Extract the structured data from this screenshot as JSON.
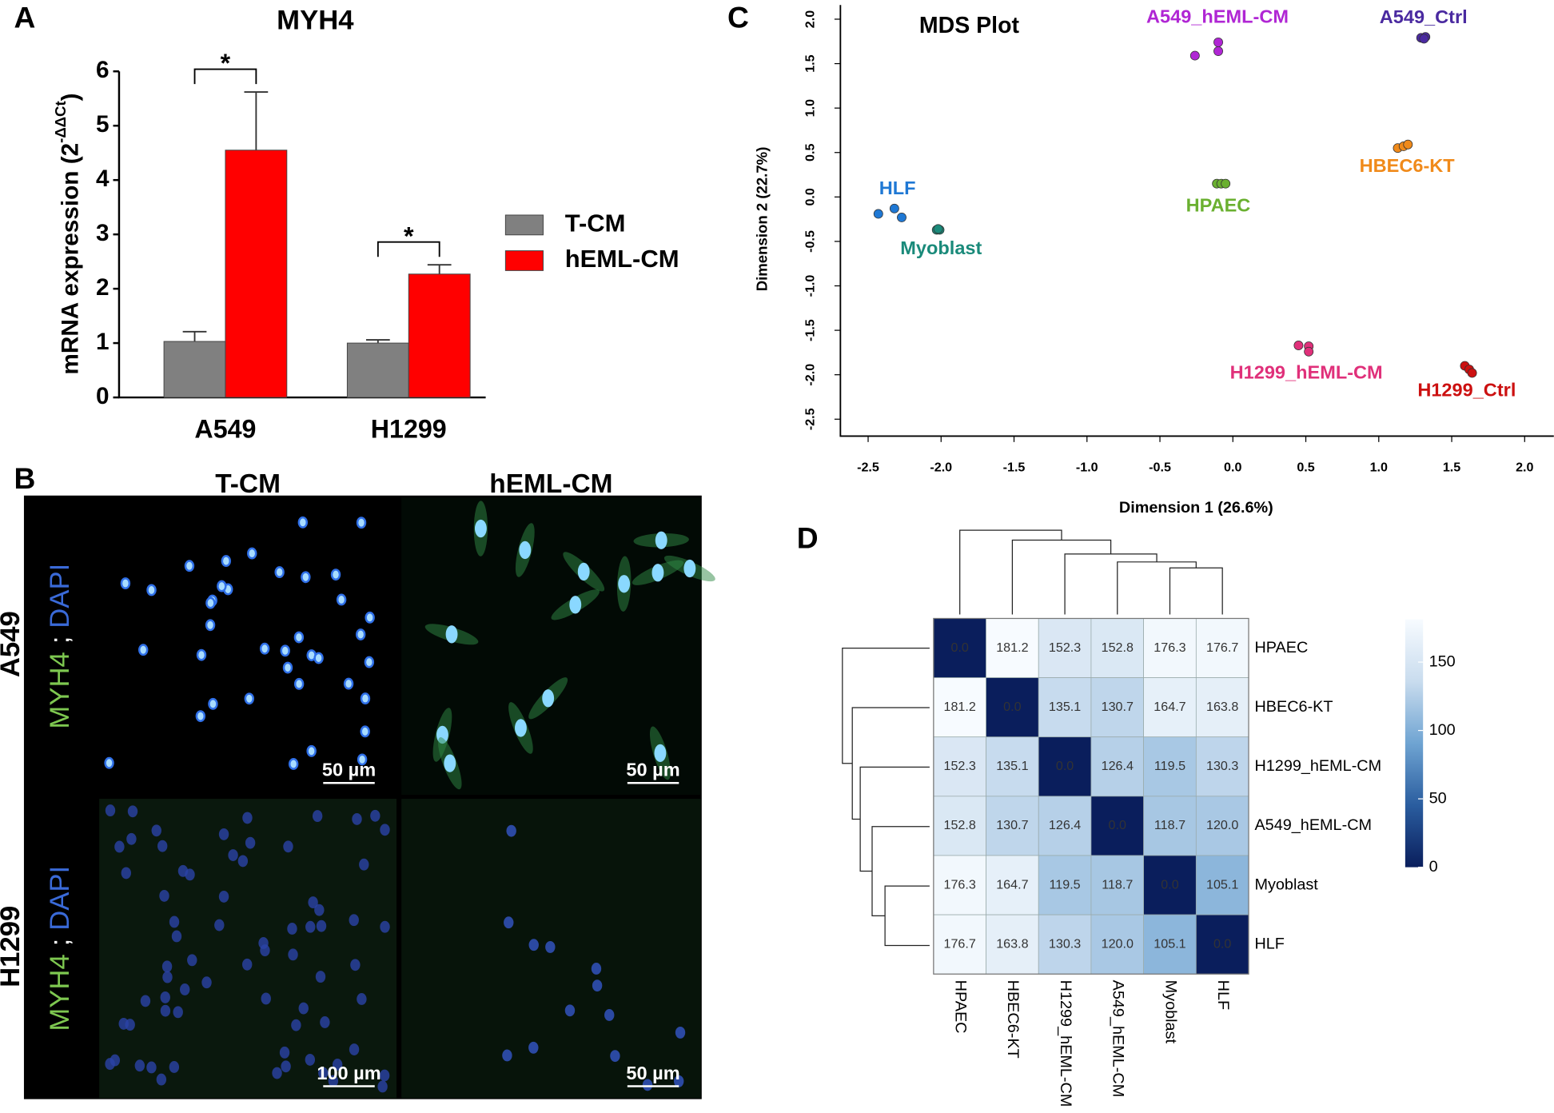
{
  "panel_labels": [
    "A",
    "B",
    "C",
    "D"
  ],
  "micrographs": {
    "columns": [
      "T-CM",
      "hEML-CM"
    ],
    "rows": [
      "A549",
      "H1299"
    ],
    "stain": [
      "MYH4",
      ";",
      "DAPI"
    ],
    "scale_bars": [
      [
        "50 µm",
        "50 µm"
      ],
      [
        "100 µm",
        "50 µm"
      ]
    ]
  },
  "chart_data": [
    {
      "type": "bar",
      "title": "MYH4",
      "ylabel": [
        "mRNA expression (2",
        "-ΔΔCt",
        ")"
      ],
      "categories": [
        "A549",
        "H1299"
      ],
      "series": [
        {
          "name": "T-CM",
          "color": "#808080",
          "values": [
            1.03,
            1.0
          ],
          "errors": [
            0.18,
            0.06
          ]
        },
        {
          "name": "hEML-CM",
          "color": "#ff0000",
          "values": [
            4.55,
            2.27
          ],
          "errors": [
            1.07,
            0.17
          ]
        }
      ],
      "significance": [
        "*",
        "*"
      ],
      "ylim": [
        0,
        6
      ],
      "yticks": [
        0,
        1,
        2,
        3,
        4,
        5,
        6
      ]
    },
    {
      "type": "scatter",
      "title": "MDS Plot",
      "xlabel": "Dimension 1 (26.6%)",
      "ylabel": "Dimension 2 (22.7%)",
      "xlim": [
        -2.69,
        2.2
      ],
      "ylim": [
        -2.69,
        2.16
      ],
      "xticks": [
        -2.5,
        {
          "value": -2,
          "label": "-2.0"
        },
        -1.5,
        {
          "value": -1,
          "label": "-1.0"
        },
        -0.5,
        {
          "value": 0,
          "label": "0.0"
        },
        0.5,
        {
          "value": 1,
          "label": "1.0"
        },
        1.5,
        {
          "value": 2,
          "label": "2.0"
        }
      ],
      "yticks": [
        -2.5,
        {
          "value": -2,
          "label": "-2.0"
        },
        -1.5,
        {
          "value": -1,
          "label": "-1.0"
        },
        -0.5,
        {
          "value": 0,
          "label": "0.0"
        },
        0.5,
        {
          "value": 1,
          "label": "1.0"
        },
        1.5,
        {
          "value": 2,
          "label": "2.0"
        }
      ],
      "series": [
        {
          "name": "HLF",
          "color": "#1f78d4",
          "x": [
            -2.43,
            -2.32,
            -2.27
          ],
          "values": [
            -0.19,
            -0.13,
            -0.23
          ]
        },
        {
          "name": "Myoblast",
          "color": "#1a8a7a",
          "x": [
            -2.03,
            -2.01,
            -2.02
          ],
          "values": [
            -0.37,
            -0.37,
            -0.36
          ]
        },
        {
          "name": "A549_hEML-CM",
          "color": "#b026d4",
          "x": [
            -0.26,
            -0.1,
            -0.1
          ],
          "values": [
            1.59,
            1.74,
            1.64
          ]
        },
        {
          "name": "A549_Ctrl",
          "color": "#4a2aa0",
          "x": [
            1.29,
            1.32,
            1.31
          ],
          "values": [
            1.79,
            1.8,
            1.78
          ]
        },
        {
          "name": "HBEC6-KT",
          "color": "#f08a1a",
          "x": [
            1.13,
            1.17,
            1.2
          ],
          "values": [
            0.55,
            0.57,
            0.59
          ]
        },
        {
          "name": "HPAEC",
          "color": "#6ab030",
          "x": [
            -0.11,
            -0.08,
            -0.05
          ],
          "values": [
            0.15,
            0.15,
            0.15
          ]
        },
        {
          "name": "H1299_hEML-CM",
          "color": "#e0307a",
          "x": [
            0.45,
            0.52,
            0.52
          ],
          "values": [
            -1.67,
            -1.68,
            -1.74
          ]
        },
        {
          "name": "H1299_Ctrl",
          "color": "#cc1010",
          "x": [
            1.59,
            1.62,
            1.64
          ],
          "values": [
            -1.9,
            -1.94,
            -1.98
          ]
        }
      ]
    },
    {
      "type": "heatmap",
      "rows": [
        "HPAEC",
        "HBEC6-KT",
        "H1299_hEML-CM",
        "A549_hEML-CM",
        "Myoblast",
        "HLF"
      ],
      "columns": [
        "HPAEC",
        "HBEC6-KT",
        "H1299_hEML-CM",
        "A549_hEML-CM",
        "Myoblast",
        "HLF"
      ],
      "values": [
        [
          0,
          181.2,
          152.3,
          152.8,
          176.3,
          176.7
        ],
        [
          181.2,
          0,
          135.1,
          130.7,
          164.7,
          163.8
        ],
        [
          152.3,
          135.1,
          0,
          126.4,
          119.5,
          130.3
        ],
        [
          152.8,
          130.7,
          126.4,
          0,
          118.7,
          120
        ],
        [
          176.3,
          164.7,
          119.5,
          118.7,
          0,
          105.1
        ],
        [
          176.7,
          163.8,
          130.3,
          120,
          105.1,
          0
        ]
      ],
      "value_labels": [
        [
          "0.0",
          "181.2",
          "152.3",
          "152.8",
          "176.3",
          "176.7"
        ],
        [
          "181.2",
          "0.0",
          "135.1",
          "130.7",
          "164.7",
          "163.8"
        ],
        [
          "152.3",
          "135.1",
          "0.0",
          "126.4",
          "119.5",
          "130.3"
        ],
        [
          "152.8",
          "130.7",
          "126.4",
          "0.0",
          "118.7",
          "120.0"
        ],
        [
          "176.3",
          "164.7",
          "119.5",
          "118.7",
          "0.0",
          "105.1"
        ],
        [
          "176.7",
          "163.8",
          "130.3",
          "120.0",
          "105.1",
          "0.0"
        ]
      ],
      "clim": [
        0,
        181.2
      ],
      "colors": [
        "#0a1e5c",
        "#2a5d9f",
        "#6fa4d2",
        "#c9dcee",
        "#f7fbff"
      ],
      "cticks": [
        0,
        50,
        100,
        150
      ]
    }
  ]
}
